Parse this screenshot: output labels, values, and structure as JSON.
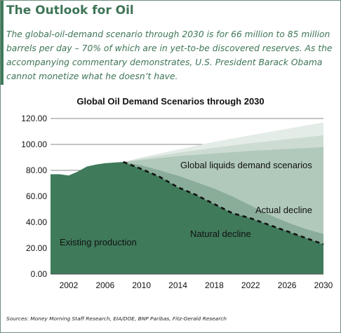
{
  "header": {
    "title": "The Outlook for Oil",
    "subtitle": "The global-oil-demand scenario through 2030 is for 66 million to 85 million barrels per day – 70% of which are in yet-to-be discovered reserves. As the accompanying commentary demonstrates, U.S. President Barack Obama cannot monetize what he doesn’t have."
  },
  "colors": {
    "existing": "#3f7a5a",
    "actual_decline": "#8aad9a",
    "scenario_1": "#b1c9bb",
    "scenario_2": "#cddcd3",
    "scenario_3": "#e3ece6",
    "accent": "#3e7556",
    "natural_decline_line": "#111111"
  },
  "chart_data": {
    "type": "area",
    "title": "Global Oil Demand Scenarios through 2030",
    "xlabel": "",
    "ylabel": "",
    "xlim": [
      2000,
      2030
    ],
    "ylim": [
      0,
      120
    ],
    "x_ticks": [
      "2002",
      "2006",
      "2010",
      "2014",
      "2018",
      "2022",
      "2026",
      "2030"
    ],
    "x_tick_values": [
      2002,
      2006,
      2010,
      2014,
      2018,
      2022,
      2026,
      2030
    ],
    "y_ticks": [
      "0.00",
      "20.00",
      "40.00",
      "60.00",
      "80.00",
      "100.00",
      "120.00"
    ],
    "y_tick_values": [
      0,
      20,
      40,
      60,
      80,
      100,
      120
    ],
    "grid": "horizontal",
    "series": [
      {
        "name": "Existing production",
        "style": "area",
        "x": [
          2000,
          2001,
          2002,
          2003,
          2004,
          2005,
          2006,
          2007,
          2008,
          2010,
          2012,
          2014,
          2016,
          2018,
          2020,
          2022,
          2024,
          2026,
          2028,
          2030
        ],
        "y": [
          77,
          77,
          76,
          79,
          83,
          84.5,
          85.5,
          86,
          86.5,
          81,
          75,
          67,
          61,
          54,
          47,
          43,
          38,
          33,
          28,
          23
        ]
      },
      {
        "name": "Actual decline",
        "style": "area",
        "x": [
          2008,
          2010,
          2012,
          2014,
          2016,
          2018,
          2020,
          2022,
          2024,
          2026,
          2028,
          2030
        ],
        "y": [
          86.5,
          84,
          80,
          76,
          71,
          66,
          60,
          53,
          46,
          40,
          35,
          31
        ]
      },
      {
        "name": "Natural decline",
        "style": "dashed-line",
        "x": [
          2008,
          2010,
          2012,
          2014,
          2016,
          2018,
          2020,
          2022,
          2024,
          2026,
          2028,
          2030
        ],
        "y": [
          86.5,
          81,
          75,
          67,
          61,
          54,
          47,
          43,
          38,
          33,
          28,
          23
        ]
      },
      {
        "name": "Global liquids demand scenarios",
        "style": "band",
        "x": [
          2008,
          2010,
          2014,
          2018,
          2022,
          2026,
          2030
        ],
        "low": [
          86.5,
          88,
          91,
          93,
          95,
          96.5,
          98
        ],
        "mid": [
          86.5,
          89,
          93.5,
          97.5,
          101,
          104,
          107
        ],
        "high": [
          86.5,
          90,
          96,
          102,
          107,
          112,
          117
        ]
      }
    ],
    "annotations": [
      "Global liquids demand scenarios",
      "Actual decline",
      "Natural decline",
      "Existing production"
    ],
    "sources": "Sources: Money Morning Staff Research, EIA/DOE, BNP Paribas, Fitz-Gerald Research"
  }
}
